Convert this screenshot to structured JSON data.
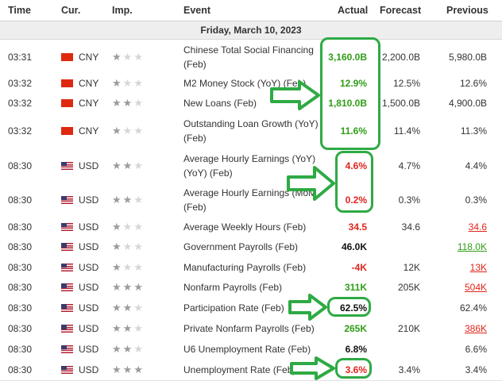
{
  "header": {
    "time": "Time",
    "cur": "Cur.",
    "imp": "Imp.",
    "event": "Event",
    "actual": "Actual",
    "forecast": "Forecast",
    "previous": "Previous"
  },
  "date_label": "Friday, March 10, 2023",
  "rows": [
    {
      "time": "03:31",
      "flag": "cn",
      "cur": "CNY",
      "imp": 1,
      "event": "Chinese Total Social Financing (Feb)",
      "actual": "3,160.0B",
      "actual_color": "green",
      "forecast": "2,200.0B",
      "previous": "5,980.0B",
      "prev_color": "normal"
    },
    {
      "time": "03:32",
      "flag": "cn",
      "cur": "CNY",
      "imp": 1,
      "event": "M2 Money Stock (YoY) (Feb)",
      "actual": "12.9%",
      "actual_color": "green",
      "forecast": "12.5%",
      "previous": "12.6%",
      "prev_color": "normal"
    },
    {
      "time": "03:32",
      "flag": "cn",
      "cur": "CNY",
      "imp": 2,
      "event": "New Loans (Feb)",
      "actual": "1,810.0B",
      "actual_color": "green",
      "forecast": "1,500.0B",
      "previous": "4,900.0B",
      "prev_color": "normal"
    },
    {
      "time": "03:32",
      "flag": "cn",
      "cur": "CNY",
      "imp": 1,
      "event": "Outstanding Loan Growth (YoY) (Feb)",
      "actual": "11.6%",
      "actual_color": "green",
      "forecast": "11.4%",
      "previous": "11.3%",
      "prev_color": "normal"
    },
    {
      "time": "08:30",
      "flag": "us",
      "cur": "USD",
      "imp": 2,
      "event": "Average Hourly Earnings (YoY) (YoY) (Feb)",
      "actual": "4.6%",
      "actual_color": "red",
      "forecast": "4.7%",
      "previous": "4.4%",
      "prev_color": "normal"
    },
    {
      "time": "08:30",
      "flag": "us",
      "cur": "USD",
      "imp": 2,
      "event": "Average Hourly Earnings (MoM) (Feb)",
      "actual": "0.2%",
      "actual_color": "red",
      "forecast": "0.3%",
      "previous": "0.3%",
      "prev_color": "normal"
    },
    {
      "time": "08:30",
      "flag": "us",
      "cur": "USD",
      "imp": 1,
      "event": "Average Weekly Hours (Feb)",
      "actual": "34.5",
      "actual_color": "red",
      "forecast": "34.6",
      "previous": "34.6",
      "prev_color": "red"
    },
    {
      "time": "08:30",
      "flag": "us",
      "cur": "USD",
      "imp": 1,
      "event": "Government Payrolls (Feb)",
      "actual": "46.0K",
      "actual_color": "black",
      "forecast": "",
      "previous": "118.0K",
      "prev_color": "green"
    },
    {
      "time": "08:30",
      "flag": "us",
      "cur": "USD",
      "imp": 1,
      "event": "Manufacturing Payrolls (Feb)",
      "actual": "-4K",
      "actual_color": "red",
      "forecast": "12K",
      "previous": "13K",
      "prev_color": "red"
    },
    {
      "time": "08:30",
      "flag": "us",
      "cur": "USD",
      "imp": 3,
      "event": "Nonfarm Payrolls (Feb)",
      "actual": "311K",
      "actual_color": "green",
      "forecast": "205K",
      "previous": "504K",
      "prev_color": "red"
    },
    {
      "time": "08:30",
      "flag": "us",
      "cur": "USD",
      "imp": 2,
      "event": "Participation Rate (Feb)",
      "actual": "62.5%",
      "actual_color": "black",
      "forecast": "",
      "previous": "62.4%",
      "prev_color": "normal"
    },
    {
      "time": "08:30",
      "flag": "us",
      "cur": "USD",
      "imp": 2,
      "event": "Private Nonfarm Payrolls (Feb)",
      "actual": "265K",
      "actual_color": "green",
      "forecast": "210K",
      "previous": "386K",
      "prev_color": "red"
    },
    {
      "time": "08:30",
      "flag": "us",
      "cur": "USD",
      "imp": 2,
      "event": "U6 Unemployment Rate (Feb)",
      "actual": "6.8%",
      "actual_color": "black",
      "forecast": "",
      "previous": "6.6%",
      "prev_color": "normal"
    },
    {
      "time": "08:30",
      "flag": "us",
      "cur": "USD",
      "imp": 3,
      "event": "Unemployment Rate (Feb)",
      "actual": "3.6%",
      "actual_color": "red",
      "forecast": "3.4%",
      "previous": "3.4%",
      "prev_color": "normal"
    }
  ],
  "annotation_color": "#2eaa44"
}
